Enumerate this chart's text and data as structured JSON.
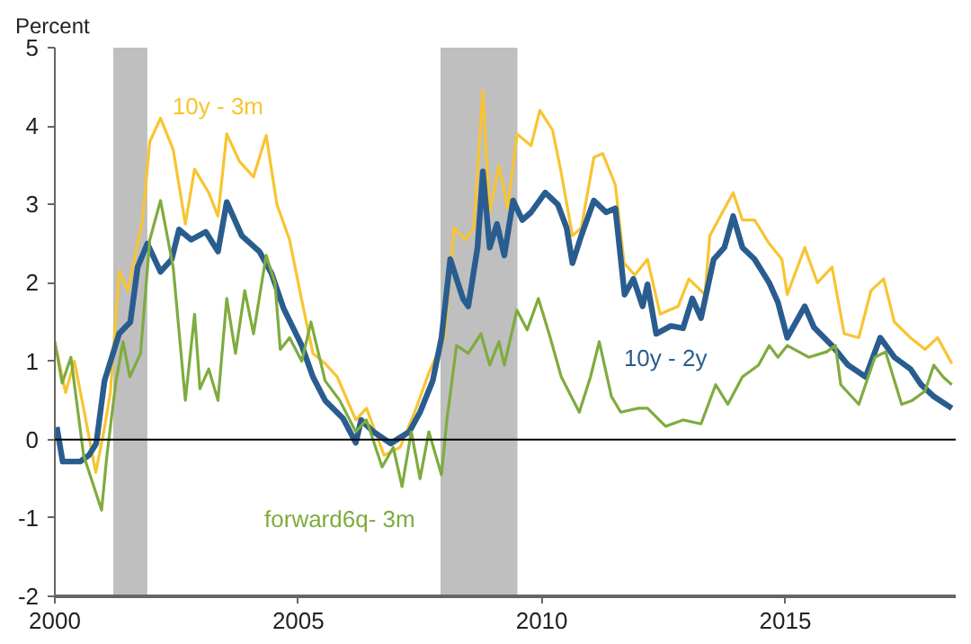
{
  "chart_data": {
    "type": "line",
    "ylabel": "Percent",
    "xlim": [
      2000,
      2018.5
    ],
    "xticks": [
      2000,
      2005,
      2010,
      2015
    ],
    "ylim": [
      -2,
      5
    ],
    "yticks": [
      -2,
      -1,
      0,
      1,
      2,
      3,
      4,
      5
    ],
    "grid": false,
    "legend": false,
    "marker": "none",
    "line_style": "solid",
    "ref_lines": [
      {
        "axis": "y",
        "value": 0,
        "color": "#000000"
      }
    ],
    "bands": [
      {
        "axis": "x",
        "from": 2001.2,
        "to": 2001.9,
        "color": "#bfbfbf"
      },
      {
        "axis": "x",
        "from": 2007.92,
        "to": 2009.5,
        "color": "#bfbfbf"
      }
    ],
    "series": [
      {
        "name": "10y - 3m",
        "color": "#f8c431",
        "x": [
          2000.04,
          2000.22,
          2000.4,
          2000.59,
          2000.84,
          2001.02,
          2001.14,
          2001.32,
          2001.5,
          2001.8,
          2001.95,
          2002.17,
          2002.43,
          2002.68,
          2002.87,
          2003.16,
          2003.35,
          2003.53,
          2003.79,
          2004.08,
          2004.34,
          2004.56,
          2004.82,
          2005.07,
          2005.3,
          2005.55,
          2005.8,
          2006.18,
          2006.4,
          2006.76,
          2007.09,
          2007.39,
          2007.68,
          2008.0,
          2008.2,
          2008.43,
          2008.6,
          2008.79,
          2008.93,
          2009.12,
          2009.3,
          2009.49,
          2009.78,
          2009.96,
          2010.22,
          2010.4,
          2010.63,
          2010.81,
          2011.07,
          2011.25,
          2011.51,
          2011.69,
          2011.91,
          2012.17,
          2012.43,
          2012.8,
          2013.02,
          2013.35,
          2013.45,
          2013.71,
          2013.93,
          2014.12,
          2014.37,
          2014.67,
          2014.93,
          2015.04,
          2015.4,
          2015.66,
          2015.96,
          2016.21,
          2016.51,
          2016.76,
          2017.02,
          2017.24,
          2017.57,
          2017.87,
          2018.13,
          2018.42
        ],
        "values": [
          1.13,
          0.6,
          1.0,
          0.4,
          -0.42,
          0.15,
          0.6,
          2.15,
          1.9,
          2.8,
          3.8,
          4.1,
          3.7,
          2.75,
          3.45,
          3.15,
          2.85,
          3.9,
          3.55,
          3.35,
          3.88,
          3.0,
          2.55,
          1.78,
          1.1,
          0.97,
          0.8,
          0.25,
          0.4,
          -0.2,
          -0.1,
          0.35,
          0.85,
          1.3,
          2.7,
          2.55,
          2.7,
          4.45,
          2.9,
          3.5,
          2.95,
          3.9,
          3.75,
          4.2,
          3.95,
          3.4,
          2.6,
          2.7,
          3.6,
          3.65,
          3.25,
          2.25,
          2.1,
          2.3,
          1.6,
          1.7,
          2.05,
          1.85,
          2.6,
          2.9,
          3.15,
          2.8,
          2.8,
          2.5,
          2.3,
          1.85,
          2.45,
          2.0,
          2.2,
          1.35,
          1.3,
          1.9,
          2.05,
          1.5,
          1.3,
          1.15,
          1.3,
          0.97
        ]
      },
      {
        "name": "10y - 2y",
        "color": "#2a5d8f",
        "x": [
          2000.04,
          2000.16,
          2000.52,
          2000.7,
          2000.85,
          2001.02,
          2001.32,
          2001.55,
          2001.7,
          2001.9,
          2002.17,
          2002.4,
          2002.55,
          2002.8,
          2003.1,
          2003.35,
          2003.53,
          2003.84,
          2004.2,
          2004.45,
          2004.7,
          2005.07,
          2005.3,
          2005.55,
          2005.92,
          2006.18,
          2006.29,
          2006.54,
          2006.9,
          2007.28,
          2007.5,
          2007.76,
          2007.94,
          2008.12,
          2008.38,
          2008.49,
          2008.68,
          2008.79,
          2008.93,
          2009.08,
          2009.23,
          2009.41,
          2009.6,
          2009.78,
          2010.07,
          2010.33,
          2010.51,
          2010.63,
          2010.81,
          2011.07,
          2011.32,
          2011.51,
          2011.7,
          2011.88,
          2012.07,
          2012.17,
          2012.35,
          2012.65,
          2012.9,
          2013.09,
          2013.27,
          2013.53,
          2013.75,
          2013.93,
          2014.12,
          2014.37,
          2014.67,
          2014.85,
          2015.04,
          2015.4,
          2015.59,
          2015.96,
          2016.29,
          2016.65,
          2016.95,
          2017.24,
          2017.57,
          2017.79,
          2018.05,
          2018.42
        ],
        "values": [
          0.16,
          -0.28,
          -0.28,
          -0.2,
          -0.05,
          0.75,
          1.35,
          1.5,
          2.2,
          2.5,
          2.14,
          2.3,
          2.68,
          2.55,
          2.65,
          2.4,
          3.03,
          2.6,
          2.4,
          2.12,
          1.67,
          1.2,
          0.8,
          0.5,
          0.27,
          -0.04,
          0.25,
          0.1,
          -0.05,
          0.1,
          0.35,
          0.75,
          1.3,
          2.3,
          1.8,
          1.7,
          2.45,
          3.42,
          2.45,
          2.75,
          2.35,
          3.05,
          2.8,
          2.9,
          3.15,
          3.0,
          2.7,
          2.25,
          2.6,
          3.05,
          2.9,
          2.95,
          1.85,
          2.05,
          1.7,
          1.98,
          1.35,
          1.45,
          1.42,
          1.8,
          1.55,
          2.3,
          2.45,
          2.85,
          2.45,
          2.3,
          2.0,
          1.75,
          1.3,
          1.7,
          1.43,
          1.2,
          0.95,
          0.8,
          1.3,
          1.05,
          0.9,
          0.7,
          0.55,
          0.4
        ]
      },
      {
        "name": "forward6q- 3m",
        "color": "#7fab3f",
        "x": [
          2000.0,
          2000.15,
          2000.33,
          2000.59,
          2000.96,
          2001.07,
          2001.25,
          2001.4,
          2001.54,
          2001.76,
          2001.95,
          2002.17,
          2002.43,
          2002.68,
          2002.87,
          2002.98,
          2003.16,
          2003.35,
          2003.53,
          2003.71,
          2003.9,
          2004.08,
          2004.34,
          2004.52,
          2004.63,
          2004.82,
          2005.07,
          2005.26,
          2005.55,
          2005.85,
          2006.18,
          2006.4,
          2006.72,
          2006.95,
          2007.13,
          2007.32,
          2007.5,
          2007.68,
          2007.94,
          2008.05,
          2008.25,
          2008.49,
          2008.75,
          2008.93,
          2009.12,
          2009.23,
          2009.49,
          2009.7,
          2009.93,
          2010.15,
          2010.4,
          2010.77,
          2011.0,
          2011.18,
          2011.43,
          2011.62,
          2011.99,
          2012.17,
          2012.54,
          2012.9,
          2013.27,
          2013.57,
          2013.82,
          2014.12,
          2014.45,
          2014.67,
          2014.85,
          2015.04,
          2015.48,
          2015.85,
          2016.03,
          2016.14,
          2016.51,
          2016.84,
          2017.06,
          2017.39,
          2017.61,
          2017.87,
          2018.05,
          2018.24,
          2018.42
        ],
        "values": [
          1.25,
          0.72,
          1.05,
          -0.2,
          -0.9,
          -0.2,
          0.72,
          1.25,
          0.8,
          1.1,
          2.55,
          3.05,
          2.2,
          0.5,
          1.6,
          0.65,
          0.9,
          0.5,
          1.8,
          1.1,
          1.9,
          1.35,
          2.35,
          2.0,
          1.15,
          1.3,
          1.0,
          1.5,
          0.75,
          0.5,
          0.1,
          0.25,
          -0.35,
          -0.1,
          -0.6,
          0.1,
          -0.5,
          0.1,
          -0.45,
          0.25,
          1.2,
          1.1,
          1.35,
          0.95,
          1.25,
          0.95,
          1.65,
          1.4,
          1.8,
          1.35,
          0.8,
          0.35,
          0.8,
          1.25,
          0.55,
          0.35,
          0.4,
          0.4,
          0.17,
          0.25,
          0.2,
          0.7,
          0.45,
          0.8,
          0.95,
          1.2,
          1.05,
          1.2,
          1.05,
          1.12,
          1.2,
          0.7,
          0.45,
          1.05,
          1.12,
          0.45,
          0.5,
          0.62,
          0.95,
          0.8,
          0.7
        ]
      }
    ]
  }
}
